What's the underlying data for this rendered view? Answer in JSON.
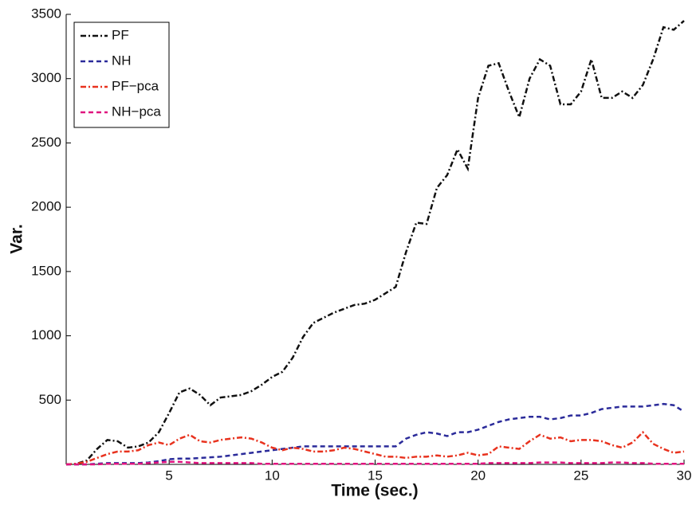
{
  "chart_data": {
    "type": "line",
    "xlabel": "Time (sec.)",
    "ylabel": "Var.",
    "x": [
      0,
      0.5,
      1,
      1.5,
      2,
      2.5,
      3,
      3.5,
      4,
      4.5,
      5,
      5.5,
      6,
      6.5,
      7,
      7.5,
      8,
      8.5,
      9,
      9.5,
      10,
      10.5,
      11,
      11.5,
      12,
      12.5,
      13,
      13.5,
      14,
      14.5,
      15,
      15.5,
      16,
      16.5,
      17,
      17.5,
      18,
      18.5,
      19,
      19.5,
      20,
      20.5,
      21,
      21.5,
      22,
      22.5,
      23,
      23.5,
      24,
      24.5,
      25,
      25.5,
      26,
      26.5,
      27,
      27.5,
      28,
      28.5,
      29,
      29.5,
      30
    ],
    "series": [
      {
        "name": "PF",
        "color": "#111111",
        "style": "dashdot",
        "values": [
          0,
          5,
          30,
          120,
          190,
          180,
          130,
          140,
          170,
          250,
          400,
          560,
          590,
          540,
          460,
          520,
          530,
          540,
          570,
          620,
          680,
          720,
          830,
          990,
          1100,
          1140,
          1180,
          1210,
          1240,
          1250,
          1280,
          1330,
          1380,
          1650,
          1880,
          1870,
          2150,
          2250,
          2450,
          2300,
          2850,
          3100,
          3120,
          2900,
          2700,
          3000,
          3150,
          3100,
          2800,
          2800,
          2900,
          3150,
          2850,
          2850,
          2900,
          2850,
          2950,
          3150,
          3400,
          3380,
          3450
        ]
      },
      {
        "name": "NH",
        "color": "#2b2b9a",
        "style": "dashed",
        "values": [
          0,
          0,
          0,
          5,
          10,
          10,
          10,
          10,
          15,
          25,
          40,
          45,
          45,
          50,
          55,
          60,
          70,
          80,
          90,
          100,
          110,
          120,
          130,
          140,
          140,
          140,
          140,
          140,
          140,
          140,
          140,
          140,
          140,
          200,
          230,
          250,
          240,
          220,
          250,
          250,
          270,
          300,
          330,
          350,
          360,
          370,
          370,
          350,
          360,
          380,
          380,
          400,
          430,
          440,
          450,
          450,
          450,
          460,
          470,
          460,
          410
        ]
      },
      {
        "name": "PF−pca",
        "color": "#e8321e",
        "style": "dashdot",
        "values": [
          0,
          5,
          20,
          50,
          80,
          100,
          100,
          110,
          150,
          170,
          150,
          200,
          230,
          180,
          170,
          190,
          200,
          210,
          200,
          170,
          130,
          110,
          130,
          120,
          100,
          100,
          110,
          130,
          120,
          100,
          80,
          60,
          60,
          50,
          60,
          60,
          70,
          60,
          70,
          90,
          70,
          80,
          140,
          130,
          120,
          180,
          230,
          200,
          210,
          180,
          190,
          190,
          180,
          150,
          130,
          170,
          250,
          160,
          120,
          90,
          100
        ]
      },
      {
        "name": "NH−pca",
        "color": "#e0137f",
        "style": "dashed",
        "values": [
          0,
          0,
          0,
          0,
          5,
          5,
          5,
          5,
          10,
          15,
          20,
          20,
          15,
          10,
          10,
          10,
          10,
          10,
          10,
          5,
          5,
          5,
          5,
          5,
          5,
          5,
          5,
          5,
          5,
          5,
          5,
          5,
          5,
          5,
          5,
          5,
          5,
          5,
          5,
          5,
          5,
          10,
          10,
          10,
          10,
          10,
          15,
          15,
          15,
          10,
          10,
          10,
          10,
          15,
          15,
          10,
          10,
          5,
          5,
          5,
          5
        ]
      }
    ],
    "xlim": [
      0,
      30
    ],
    "xticks": [
      5,
      10,
      15,
      20,
      25,
      30
    ],
    "ylim": [
      0,
      3500
    ],
    "yticks": [
      500,
      1000,
      1500,
      2000,
      2500,
      3000,
      3500
    ],
    "legend": "upper left"
  }
}
